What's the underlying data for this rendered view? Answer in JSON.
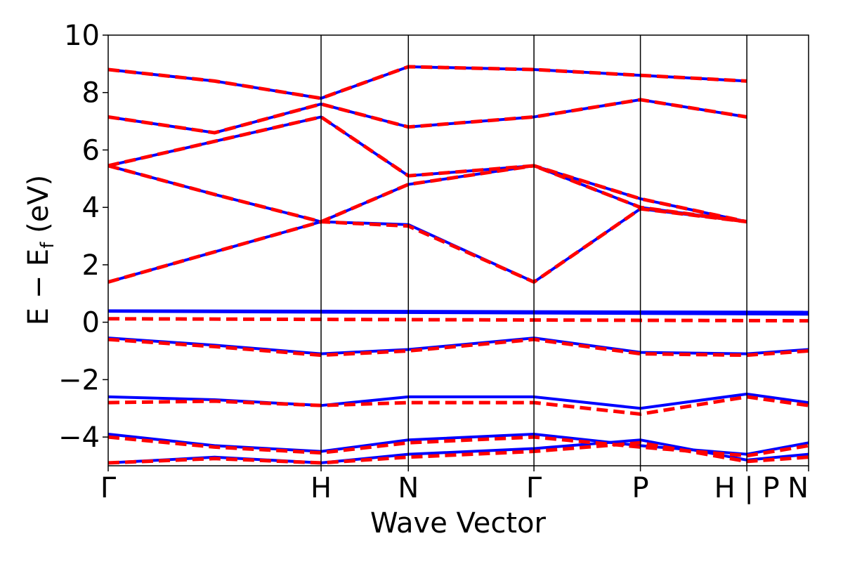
{
  "chart_data": {
    "type": "line",
    "xlabel": "Wave Vector",
    "ylabel_main": "E − E",
    "ylabel_sub": "f",
    "ylabel_unit": " (eV)",
    "ylim": [
      -5,
      10
    ],
    "yticks": [
      -4,
      -2,
      0,
      2,
      4,
      6,
      8,
      10
    ],
    "ytick_labels": [
      "−4",
      "−2",
      "0",
      "2",
      "4",
      "6",
      "8",
      "10"
    ],
    "kpath": [
      {
        "label": "Γ",
        "x": 0.0,
        "divider": false
      },
      {
        "label": "H",
        "x": 1.0,
        "divider": true
      },
      {
        "label": "N",
        "x": 1.41,
        "divider": true
      },
      {
        "label": "Γ",
        "x": 2.0,
        "divider": true
      },
      {
        "label": "P",
        "x": 2.5,
        "divider": true
      },
      {
        "label": "H | P",
        "x": 3.0,
        "divider": true
      },
      {
        "label": "N",
        "x": 3.29,
        "divider": false
      }
    ],
    "xlim": [
      0.0,
      3.29
    ],
    "series": [
      {
        "style": "solid",
        "color": "#0000ff",
        "bands": [
          {
            "x": [
              0.0,
              0.5,
              1.0,
              1.41,
              2.0,
              2.5,
              3.0
            ],
            "y": [
              1.4,
              2.45,
              3.5,
              3.4,
              1.4,
              3.95,
              3.5
            ]
          },
          {
            "x": [
              0.0,
              0.5,
              1.0,
              1.41,
              2.0,
              2.5,
              3.0
            ],
            "y": [
              5.45,
              4.45,
              3.5,
              4.8,
              5.45,
              4.3,
              3.5
            ]
          },
          {
            "x": [
              0.0,
              0.5,
              1.0,
              1.41,
              2.0,
              2.5,
              3.0
            ],
            "y": [
              5.45,
              6.3,
              7.15,
              5.1,
              5.45,
              4.0,
              3.5
            ]
          },
          {
            "x": [
              0.0,
              0.5,
              1.0,
              1.41,
              2.0,
              2.5,
              3.0
            ],
            "y": [
              7.15,
              6.6,
              7.6,
              6.8,
              7.15,
              7.75,
              7.15
            ]
          },
          {
            "x": [
              0.0,
              0.5,
              1.0,
              1.41,
              2.0,
              2.5,
              3.0
            ],
            "y": [
              8.8,
              8.4,
              7.8,
              8.9,
              8.8,
              8.6,
              8.4
            ]
          },
          {
            "x": [
              0.0,
              3.29
            ],
            "y": [
              0.4,
              0.35
            ]
          },
          {
            "x": [
              0.0,
              3.29
            ],
            "y": [
              0.38,
              0.28
            ]
          },
          {
            "x": [
              0.0,
              0.5,
              1.0,
              1.41,
              2.0,
              2.5,
              3.0,
              3.29
            ],
            "y": [
              -0.55,
              -0.8,
              -1.1,
              -0.95,
              -0.55,
              -1.05,
              -1.1,
              -0.95
            ]
          },
          {
            "x": [
              0.0,
              0.5,
              1.0,
              1.41,
              2.0,
              2.5,
              3.0,
              3.29
            ],
            "y": [
              -2.6,
              -2.7,
              -2.9,
              -2.6,
              -2.6,
              -3.0,
              -2.5,
              -2.8
            ]
          },
          {
            "x": [
              0.0,
              0.5,
              1.0,
              1.41,
              2.0,
              2.5,
              3.0,
              3.29
            ],
            "y": [
              -3.9,
              -4.3,
              -4.5,
              -4.1,
              -3.9,
              -4.3,
              -4.6,
              -4.2
            ]
          },
          {
            "x": [
              0.0,
              0.5,
              1.0,
              1.41,
              2.0,
              2.5,
              3.0,
              3.29
            ],
            "y": [
              -4.9,
              -4.7,
              -4.9,
              -4.6,
              -4.4,
              -4.1,
              -4.8,
              -4.6
            ]
          }
        ]
      },
      {
        "style": "dashed",
        "color": "#ff0000",
        "bands": [
          {
            "x": [
              0.0,
              0.5,
              1.0,
              1.41,
              2.0,
              2.5,
              3.0
            ],
            "y": [
              1.4,
              2.45,
              3.5,
              3.35,
              1.4,
              3.95,
              3.5
            ]
          },
          {
            "x": [
              0.0,
              0.5,
              1.0,
              1.41,
              2.0,
              2.5,
              3.0
            ],
            "y": [
              5.45,
              4.45,
              3.5,
              4.8,
              5.45,
              4.3,
              3.5
            ]
          },
          {
            "x": [
              0.0,
              0.5,
              1.0,
              1.41,
              2.0,
              2.5,
              3.0
            ],
            "y": [
              5.45,
              6.3,
              7.15,
              5.1,
              5.45,
              4.0,
              3.5
            ]
          },
          {
            "x": [
              0.0,
              0.5,
              1.0,
              1.41,
              2.0,
              2.5,
              3.0
            ],
            "y": [
              7.15,
              6.6,
              7.6,
              6.8,
              7.15,
              7.75,
              7.15
            ]
          },
          {
            "x": [
              0.0,
              0.5,
              1.0,
              1.41,
              2.0,
              2.5,
              3.0
            ],
            "y": [
              8.8,
              8.4,
              7.8,
              8.9,
              8.8,
              8.6,
              8.4
            ]
          },
          {
            "x": [
              0.0,
              3.29
            ],
            "y": [
              0.12,
              0.05
            ]
          },
          {
            "x": [
              0.0,
              0.5,
              1.0,
              1.41,
              2.0,
              2.5,
              3.0,
              3.29
            ],
            "y": [
              -0.6,
              -0.85,
              -1.15,
              -1.0,
              -0.6,
              -1.1,
              -1.15,
              -1.0
            ]
          },
          {
            "x": [
              0.0,
              0.5,
              1.0,
              1.41,
              2.0,
              2.5,
              3.0,
              3.29
            ],
            "y": [
              -2.8,
              -2.75,
              -2.9,
              -2.8,
              -2.8,
              -3.2,
              -2.6,
              -2.9
            ]
          },
          {
            "x": [
              0.0,
              0.5,
              1.0,
              1.41,
              2.0,
              2.5,
              3.0,
              3.29
            ],
            "y": [
              -4.0,
              -4.35,
              -4.55,
              -4.2,
              -4.0,
              -4.35,
              -4.65,
              -4.3
            ]
          },
          {
            "x": [
              0.0,
              0.5,
              1.0,
              1.41,
              2.0,
              2.5,
              3.0,
              3.29
            ],
            "y": [
              -4.9,
              -4.75,
              -4.9,
              -4.7,
              -4.5,
              -4.2,
              -4.85,
              -4.7
            ]
          }
        ]
      }
    ],
    "grid": false,
    "legend": "none"
  }
}
